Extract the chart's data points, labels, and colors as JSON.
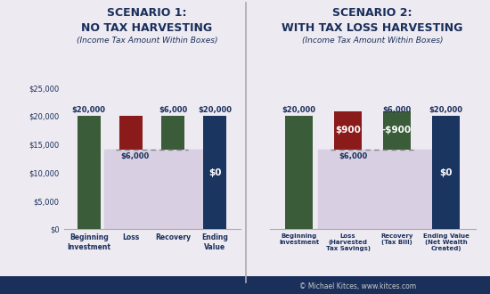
{
  "bg_color": "#edeaf2",
  "dark_navy": "#1a2f5a",
  "dark_green": "#3a5c38",
  "dark_red": "#8b1a1a",
  "dark_blue": "#1a3560",
  "lavender": "#d8d0e2",
  "divider_color": "#aaaaaa",
  "s1_title_line1": "SCENARIO 1:",
  "s1_title_line2": "NO TAX HARVESTING",
  "s1_subtitle": "(Income Tax Amount Within Boxes)",
  "s1_categories": [
    "Beginning\nInvestment",
    "Loss",
    "Recovery",
    "Ending\nValue"
  ],
  "s2_title_line1": "SCENARIO 2:",
  "s2_title_line2": "WITH TAX LOSS HARVESTING",
  "s2_subtitle": "(Income Tax Amount Within Boxes)",
  "s2_categories": [
    "Beginning\nInvestment",
    "Loss\n(Harvested\nTax Savings)",
    "Recovery\n(Tax Bill)",
    "Ending Value\n(Net Wealth\nCreated)"
  ],
  "ylim": [
    0,
    27000
  ],
  "yticks": [
    0,
    5000,
    10000,
    15000,
    20000,
    25000
  ],
  "ytick_labels": [
    "$0",
    "$5,000",
    "$10,000",
    "$15,000",
    "$20,000",
    "$25,000"
  ],
  "copyright": "© Michael Kitces, www.kitces.com"
}
